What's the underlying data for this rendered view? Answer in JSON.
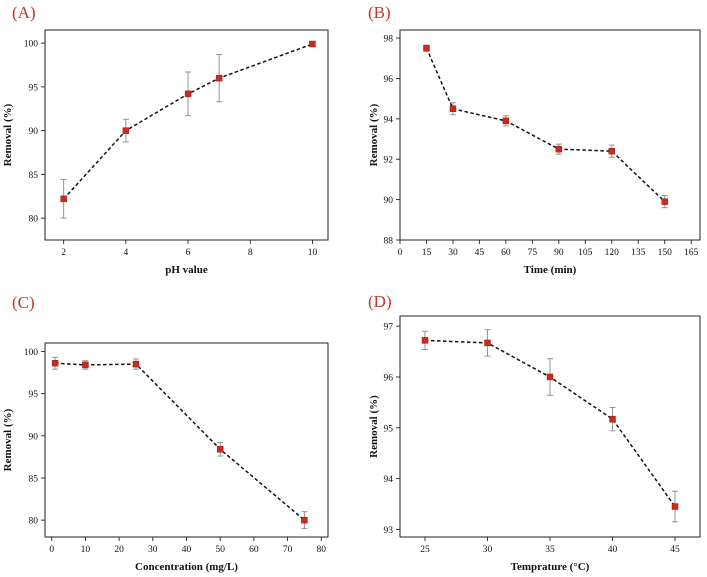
{
  "figure_caption": "",
  "colors": {
    "letter": "#c0392b",
    "marker": "#d0281f",
    "line": "#111111",
    "error": "#8a8a8a"
  },
  "chart_data": [
    {
      "panel": "(A)",
      "type": "line",
      "xlabel": "pH value",
      "ylabel": "Removal (%)",
      "xlim": [
        1.4,
        10.5
      ],
      "ylim": [
        77.5,
        101.5
      ],
      "xticks": [
        2,
        4,
        6,
        8,
        10
      ],
      "yticks": [
        80,
        85,
        90,
        95,
        100
      ],
      "x": [
        2,
        4,
        6,
        7,
        10
      ],
      "y": [
        82.2,
        90.0,
        94.2,
        96.0,
        99.9
      ],
      "err": [
        2.2,
        1.3,
        2.5,
        2.7,
        0.1
      ]
    },
    {
      "panel": "(B)",
      "type": "line",
      "xlabel": "Time (min)",
      "ylabel": "Removal (%)",
      "xlim": [
        0,
        170
      ],
      "ylim": [
        88,
        98.4
      ],
      "xticks": [
        0,
        15,
        30,
        45,
        60,
        75,
        90,
        105,
        120,
        135,
        150,
        165
      ],
      "yticks": [
        88,
        90,
        92,
        94,
        96,
        98
      ],
      "x": [
        15,
        30,
        60,
        90,
        120,
        150
      ],
      "y": [
        97.5,
        94.5,
        93.9,
        92.5,
        92.4,
        89.9
      ],
      "err": [
        0.15,
        0.3,
        0.25,
        0.25,
        0.3,
        0.3
      ]
    },
    {
      "panel": "(C)",
      "type": "line",
      "xlabel": "Concentration (mg/L)",
      "ylabel": "Removal (%)",
      "xlim": [
        -2,
        82
      ],
      "ylim": [
        78,
        101
      ],
      "xticks": [
        0,
        10,
        20,
        30,
        40,
        50,
        60,
        70,
        80
      ],
      "yticks": [
        80,
        85,
        90,
        95,
        100
      ],
      "x": [
        1,
        10,
        25,
        50,
        75
      ],
      "y": [
        98.6,
        98.4,
        98.5,
        88.4,
        80.0
      ],
      "err": [
        0.7,
        0.5,
        0.6,
        0.8,
        1.0
      ]
    },
    {
      "panel": "(D)",
      "type": "line",
      "xlabel": "Temprature (°C)",
      "ylabel": "Removal (%)",
      "xlim": [
        23,
        47
      ],
      "ylim": [
        92.85,
        97.2
      ],
      "xticks": [
        25,
        30,
        35,
        40,
        45
      ],
      "yticks": [
        93,
        94,
        95,
        96,
        97
      ],
      "x": [
        25,
        30,
        35,
        40,
        45
      ],
      "y": [
        96.72,
        96.67,
        96.0,
        95.17,
        93.45
      ],
      "err": [
        0.18,
        0.26,
        0.36,
        0.23,
        0.3
      ]
    }
  ]
}
